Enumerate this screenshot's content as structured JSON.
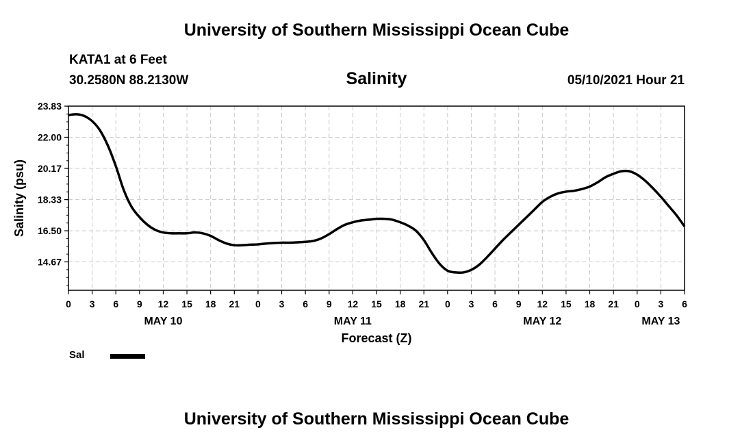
{
  "header": {
    "title": "University of Southern Mississippi Ocean Cube",
    "station": "KATA1 at 6 Feet",
    "coordinates": "30.2580N  88.2130W",
    "issued": "05/10/2021 Hour 21"
  },
  "footer": {
    "title": "University of Southern Mississippi Ocean Cube"
  },
  "chart_data": {
    "type": "line",
    "title": "Salinity",
    "xlabel": "Forecast (Z)",
    "ylabel": "Salinity (psu)",
    "xlim": [
      0,
      78
    ],
    "ylim": [
      13.0,
      23.83
    ],
    "y_ticks": [
      {
        "value": 23.83,
        "label": "23.83"
      },
      {
        "value": 22.0,
        "label": "22.00"
      },
      {
        "value": 20.17,
        "label": "20.17"
      },
      {
        "value": 18.33,
        "label": "18.33"
      },
      {
        "value": 16.5,
        "label": "16.50"
      },
      {
        "value": 14.67,
        "label": "14.67"
      }
    ],
    "x_ticks": [
      {
        "value": 0,
        "label": "0"
      },
      {
        "value": 3,
        "label": "3"
      },
      {
        "value": 6,
        "label": "6"
      },
      {
        "value": 9,
        "label": "9"
      },
      {
        "value": 12,
        "label": "12"
      },
      {
        "value": 15,
        "label": "15"
      },
      {
        "value": 18,
        "label": "18"
      },
      {
        "value": 21,
        "label": "21"
      },
      {
        "value": 24,
        "label": "0"
      },
      {
        "value": 27,
        "label": "3"
      },
      {
        "value": 30,
        "label": "6"
      },
      {
        "value": 33,
        "label": "9"
      },
      {
        "value": 36,
        "label": "12"
      },
      {
        "value": 39,
        "label": "15"
      },
      {
        "value": 42,
        "label": "18"
      },
      {
        "value": 45,
        "label": "21"
      },
      {
        "value": 48,
        "label": "0"
      },
      {
        "value": 51,
        "label": "3"
      },
      {
        "value": 54,
        "label": "6"
      },
      {
        "value": 57,
        "label": "9"
      },
      {
        "value": 60,
        "label": "12"
      },
      {
        "value": 63,
        "label": "15"
      },
      {
        "value": 66,
        "label": "18"
      },
      {
        "value": 69,
        "label": "21"
      },
      {
        "value": 72,
        "label": "0"
      },
      {
        "value": 75,
        "label": "3"
      },
      {
        "value": 78,
        "label": "6"
      }
    ],
    "date_labels": [
      {
        "value": 12,
        "label": "MAY 10"
      },
      {
        "value": 36,
        "label": "MAY 11"
      },
      {
        "value": 60,
        "label": "MAY 12"
      },
      {
        "value": 75,
        "label": "MAY 13"
      }
    ],
    "grid": true,
    "series": [
      {
        "name": "Sal",
        "color": "#000000",
        "x": [
          0,
          1,
          2,
          3,
          4,
          5,
          6,
          7,
          8,
          9,
          10,
          11,
          12,
          13,
          14,
          15,
          16,
          17,
          18,
          19,
          20,
          21,
          22,
          23,
          24,
          25,
          26,
          27,
          28,
          29,
          30,
          31,
          32,
          33,
          34,
          35,
          36,
          37,
          38,
          39,
          40,
          41,
          42,
          43,
          44,
          45,
          46,
          47,
          48,
          49,
          50,
          51,
          52,
          53,
          54,
          55,
          56,
          57,
          58,
          59,
          60,
          61,
          62,
          63,
          64,
          65,
          66,
          67,
          68,
          69,
          70,
          71,
          72,
          73,
          74,
          75,
          76,
          77,
          78
        ],
        "values": [
          23.3,
          23.35,
          23.25,
          22.95,
          22.4,
          21.5,
          20.3,
          18.9,
          17.9,
          17.3,
          16.85,
          16.55,
          16.4,
          16.35,
          16.35,
          16.35,
          16.4,
          16.35,
          16.2,
          15.95,
          15.75,
          15.65,
          15.65,
          15.68,
          15.7,
          15.75,
          15.78,
          15.8,
          15.8,
          15.82,
          15.85,
          15.9,
          16.05,
          16.3,
          16.6,
          16.85,
          17.0,
          17.1,
          17.15,
          17.2,
          17.2,
          17.15,
          17.0,
          16.8,
          16.5,
          15.95,
          15.2,
          14.55,
          14.15,
          14.05,
          14.05,
          14.2,
          14.5,
          14.95,
          15.45,
          15.95,
          16.4,
          16.85,
          17.3,
          17.75,
          18.2,
          18.5,
          18.7,
          18.8,
          18.85,
          18.95,
          19.1,
          19.35,
          19.65,
          19.85,
          20.0,
          20.0,
          19.8,
          19.45,
          19.0,
          18.5,
          17.95,
          17.4,
          16.75
        ]
      }
    ],
    "legend": {
      "label": "Sal",
      "placement": "bottom-left"
    }
  }
}
